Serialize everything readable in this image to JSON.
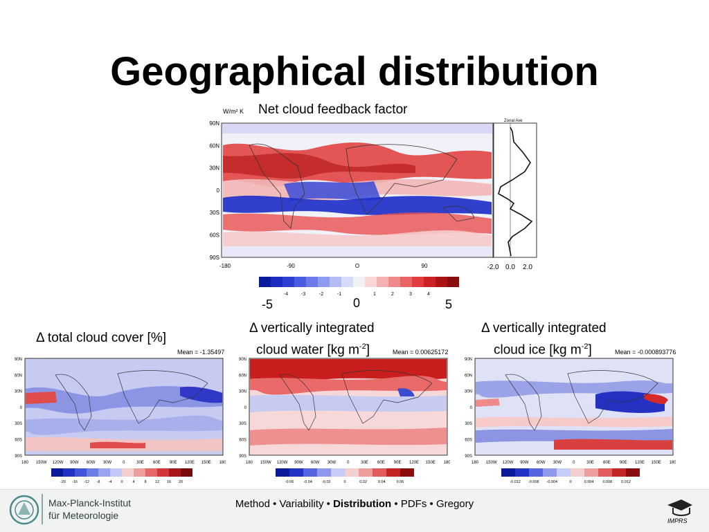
{
  "slide": {
    "title": "Geographical distribution"
  },
  "main_map": {
    "title": "Net cloud feedback factor",
    "unit": "W/m² K",
    "lat_ticks": [
      "90N",
      "60N",
      "30N",
      "0",
      "30S",
      "60S",
      "90S"
    ],
    "lon_ticks": [
      "-180",
      "-90",
      "O",
      "90"
    ],
    "zonal_title": "Zonal Ave",
    "zonal_ticks": [
      "-2.0",
      "0.0",
      "2.0"
    ],
    "colorbar_ticks": [
      "-4",
      "-3",
      "-2",
      "-1",
      "1",
      "2",
      "3",
      "4"
    ],
    "colorbar_min_label": "-5",
    "colorbar_mid_label": "0",
    "colorbar_max_label": "5"
  },
  "panels": [
    {
      "title_line1": "Δ total cloud cover [%]",
      "title_line2": "",
      "mean": "Mean = -1.35497",
      "colorbar_ticks": [
        "-20",
        "-16",
        "-12",
        "-8",
        "-4",
        "0",
        "4",
        "8",
        "12",
        "16",
        "20"
      ]
    },
    {
      "title_line1": "Δ vertically integrated",
      "title_line2": "cloud water [kg m",
      "exponent": "-2",
      "mean": "Mean = 0.00625172",
      "colorbar_ticks": [
        "-0.06",
        "-0.04",
        "-0.02",
        "0",
        "0.02",
        "0.04",
        "0.06"
      ]
    },
    {
      "title_line1": "Δ vertically integrated",
      "title_line2": "cloud ice [kg m",
      "exponent": "-2",
      "mean": "Mean = -0.000893776",
      "colorbar_ticks": [
        "-0.012",
        "-0.008",
        "-0.004",
        "0",
        "0.004",
        "0.008",
        "0.012"
      ]
    }
  ],
  "small_map": {
    "lat_ticks": [
      "90N",
      "60N",
      "30N",
      "0",
      "30S",
      "60S",
      "90S"
    ],
    "lon_ticks": [
      "180",
      "150W",
      "120W",
      "90W",
      "60W",
      "30W",
      "0",
      "30E",
      "60E",
      "90E",
      "120E",
      "150E",
      "180"
    ]
  },
  "footer": {
    "institute_line1": "Max-Planck-Institut",
    "institute_line2": "für Meteorologie",
    "nav": [
      "Method",
      "Variability",
      "Distribution",
      "PDFs",
      "Gregory"
    ],
    "nav_separator": "•",
    "current": "Distribution",
    "school_logo_text": "IMPRS"
  },
  "colors": {
    "deep_blue": "#1f1fb0",
    "deep_red": "#8a0d10",
    "neutral": "#f3f3f3"
  }
}
